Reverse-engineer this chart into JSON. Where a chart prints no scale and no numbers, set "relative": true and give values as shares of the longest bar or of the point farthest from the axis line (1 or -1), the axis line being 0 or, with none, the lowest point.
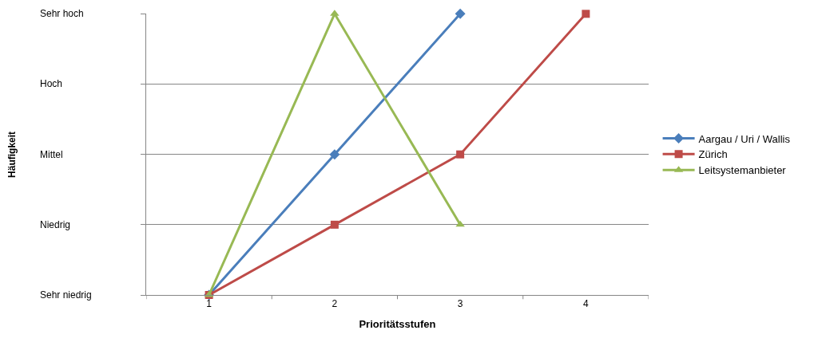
{
  "chart_data": {
    "type": "line",
    "relative": true,
    "xlabel": "Prioritätsstufen",
    "categories": [
      "1",
      "2",
      "3",
      "4"
    ],
    "annotations": [
      "Häufigkeit",
      "Sehr hoch",
      "Hoch",
      "Mittel",
      "Niedrig",
      "Sehr niedrig"
    ],
    "series": [
      {
        "name": "Aargau / Uri / Wallis",
        "color": "#4a7ebb",
        "marker": "diamond",
        "values": [
          0,
          0.5,
          1,
          null
        ]
      },
      {
        "name": "Zürich",
        "color": "#be4b48",
        "marker": "square",
        "values": [
          0,
          0.25,
          0.5,
          1
        ]
      },
      {
        "name": "Leitsystemanbieter",
        "color": "#98b954",
        "marker": "triangle",
        "values": [
          0,
          1,
          0.25,
          null
        ]
      }
    ],
    "grid": "y",
    "legend": "right",
    "line_style": "solid"
  }
}
